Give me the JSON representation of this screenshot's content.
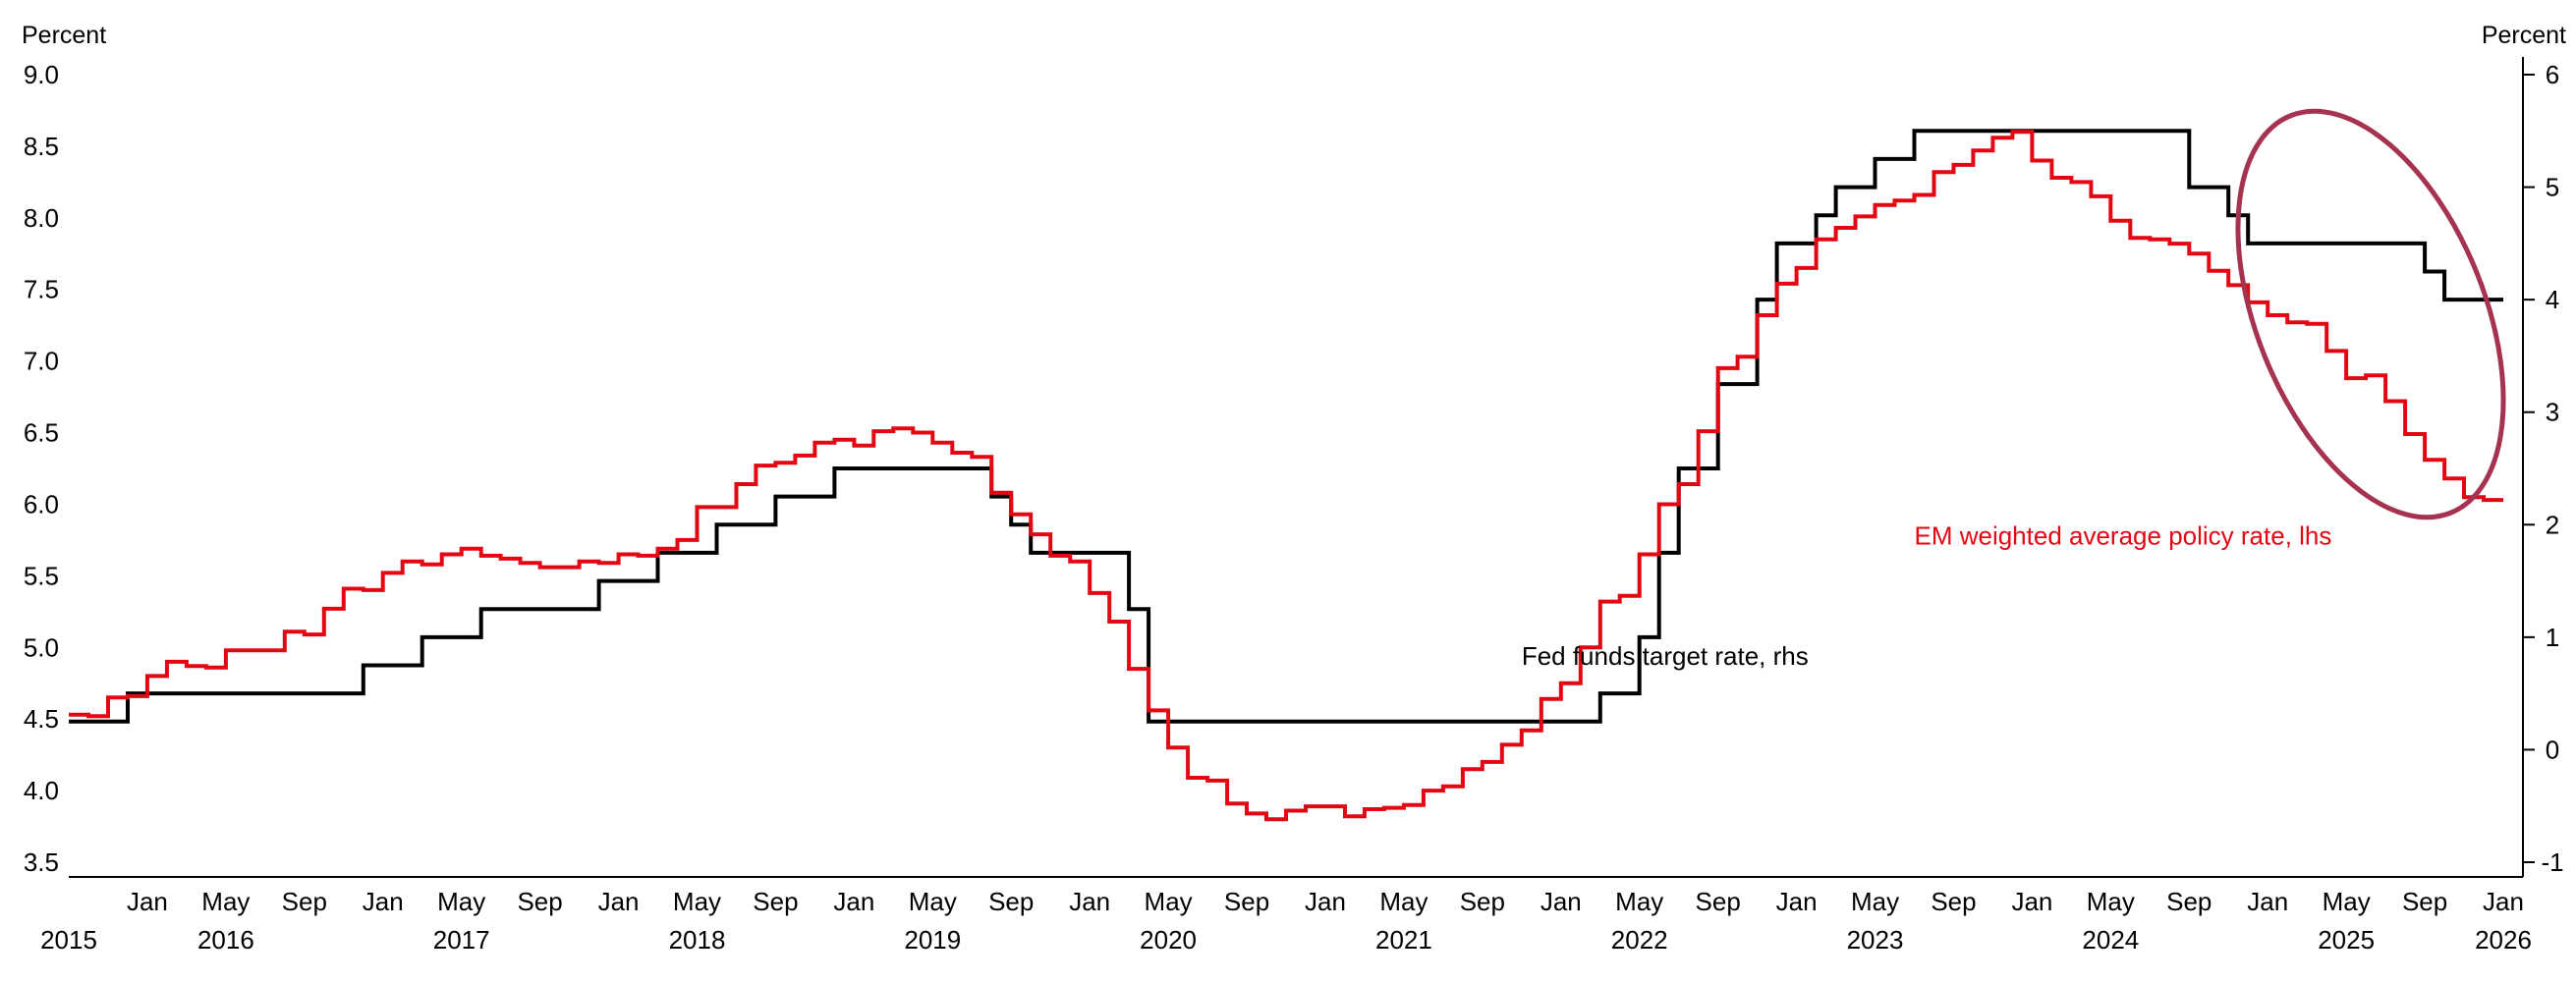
{
  "chart_data": {
    "type": "line",
    "left_axis_title": "Percent",
    "right_axis_title": "Percent",
    "ylim_left": [
      3.5,
      9.0
    ],
    "ylim_right": [
      -1,
      6
    ],
    "yticks_left": [
      "9.0",
      "8.5",
      "8.0",
      "7.5",
      "7.0",
      "6.5",
      "6.0",
      "5.5",
      "5.0",
      "4.5",
      "4.0",
      "3.5"
    ],
    "yticks_right": [
      "6",
      "5",
      "4",
      "3",
      "2",
      "1",
      "0",
      "-1"
    ],
    "x_range": [
      "2015-09",
      "2026-02"
    ],
    "x_month_ticks": [
      {
        "label": "Jan",
        "date": "2016-01"
      },
      {
        "label": "May",
        "date": "2016-05"
      },
      {
        "label": "Sep",
        "date": "2016-09"
      },
      {
        "label": "Jan",
        "date": "2017-01"
      },
      {
        "label": "May",
        "date": "2017-05"
      },
      {
        "label": "Sep",
        "date": "2017-09"
      },
      {
        "label": "Jan",
        "date": "2018-01"
      },
      {
        "label": "May",
        "date": "2018-05"
      },
      {
        "label": "Sep",
        "date": "2018-09"
      },
      {
        "label": "Jan",
        "date": "2019-01"
      },
      {
        "label": "May",
        "date": "2019-05"
      },
      {
        "label": "Sep",
        "date": "2019-09"
      },
      {
        "label": "Jan",
        "date": "2020-01"
      },
      {
        "label": "May",
        "date": "2020-05"
      },
      {
        "label": "Sep",
        "date": "2020-09"
      },
      {
        "label": "Jan",
        "date": "2021-01"
      },
      {
        "label": "May",
        "date": "2021-05"
      },
      {
        "label": "Sep",
        "date": "2021-09"
      },
      {
        "label": "Jan",
        "date": "2022-01"
      },
      {
        "label": "May",
        "date": "2022-05"
      },
      {
        "label": "Sep",
        "date": "2022-09"
      },
      {
        "label": "Jan",
        "date": "2023-01"
      },
      {
        "label": "May",
        "date": "2023-05"
      },
      {
        "label": "Sep",
        "date": "2023-09"
      },
      {
        "label": "Jan",
        "date": "2024-01"
      },
      {
        "label": "May",
        "date": "2024-05"
      },
      {
        "label": "Sep",
        "date": "2024-09"
      },
      {
        "label": "Jan",
        "date": "2025-01"
      },
      {
        "label": "May",
        "date": "2025-05"
      },
      {
        "label": "Sep",
        "date": "2025-09"
      },
      {
        "label": "Jan",
        "date": "2026-01"
      }
    ],
    "x_year_labels": [
      {
        "label": "2015",
        "date": "2015-09"
      },
      {
        "label": "2016",
        "date": "2016-05"
      },
      {
        "label": "2017",
        "date": "2017-05"
      },
      {
        "label": "2018",
        "date": "2018-05"
      },
      {
        "label": "2019",
        "date": "2019-05"
      },
      {
        "label": "2020",
        "date": "2020-05"
      },
      {
        "label": "2021",
        "date": "2021-05"
      },
      {
        "label": "2022",
        "date": "2022-05"
      },
      {
        "label": "2023",
        "date": "2023-05"
      },
      {
        "label": "2024",
        "date": "2024-05"
      },
      {
        "label": "2025",
        "date": "2025-05"
      },
      {
        "label": "2026",
        "date": "2026-01"
      }
    ],
    "colors": {
      "em": "#e30613",
      "fed": "#000000",
      "ellipse": "#a5334f"
    },
    "grid": false,
    "series": [
      {
        "name": "EM weighted average policy rate, lhs",
        "axis": "left",
        "color": "#e30613",
        "points": [
          [
            "2015-09",
            4.53
          ],
          [
            "2015-10",
            4.52
          ],
          [
            "2015-11",
            4.65
          ],
          [
            "2015-12",
            4.66
          ],
          [
            "2016-01",
            4.8
          ],
          [
            "2016-02",
            4.9
          ],
          [
            "2016-03",
            4.87
          ],
          [
            "2016-04",
            4.86
          ],
          [
            "2016-05",
            4.98
          ],
          [
            "2016-06",
            4.98
          ],
          [
            "2016-07",
            4.98
          ],
          [
            "2016-08",
            5.11
          ],
          [
            "2016-09",
            5.09
          ],
          [
            "2016-10",
            5.27
          ],
          [
            "2016-11",
            5.41
          ],
          [
            "2016-12",
            5.4
          ],
          [
            "2017-01",
            5.52
          ],
          [
            "2017-02",
            5.6
          ],
          [
            "2017-03",
            5.58
          ],
          [
            "2017-04",
            5.65
          ],
          [
            "2017-05",
            5.69
          ],
          [
            "2017-06",
            5.64
          ],
          [
            "2017-07",
            5.62
          ],
          [
            "2017-08",
            5.59
          ],
          [
            "2017-09",
            5.56
          ],
          [
            "2017-10",
            5.56
          ],
          [
            "2017-11",
            5.6
          ],
          [
            "2017-12",
            5.59
          ],
          [
            "2018-01",
            5.65
          ],
          [
            "2018-02",
            5.64
          ],
          [
            "2018-03",
            5.69
          ],
          [
            "2018-04",
            5.75
          ],
          [
            "2018-05",
            5.98
          ],
          [
            "2018-06",
            5.98
          ],
          [
            "2018-07",
            6.14
          ],
          [
            "2018-08",
            6.27
          ],
          [
            "2018-09",
            6.29
          ],
          [
            "2018-10",
            6.34
          ],
          [
            "2018-11",
            6.43
          ],
          [
            "2018-12",
            6.45
          ],
          [
            "2019-01",
            6.41
          ],
          [
            "2019-02",
            6.51
          ],
          [
            "2019-03",
            6.53
          ],
          [
            "2019-04",
            6.5
          ],
          [
            "2019-05",
            6.43
          ],
          [
            "2019-06",
            6.36
          ],
          [
            "2019-07",
            6.33
          ],
          [
            "2019-08",
            6.08
          ],
          [
            "2019-09",
            5.93
          ],
          [
            "2019-10",
            5.79
          ],
          [
            "2019-11",
            5.64
          ],
          [
            "2019-12",
            5.6
          ],
          [
            "2020-01",
            5.38
          ],
          [
            "2020-02",
            5.18
          ],
          [
            "2020-03",
            4.85
          ],
          [
            "2020-04",
            4.56
          ],
          [
            "2020-05",
            4.3
          ],
          [
            "2020-06",
            4.09
          ],
          [
            "2020-07",
            4.07
          ],
          [
            "2020-08",
            3.91
          ],
          [
            "2020-09",
            3.84
          ],
          [
            "2020-10",
            3.8
          ],
          [
            "2020-11",
            3.86
          ],
          [
            "2020-12",
            3.89
          ],
          [
            "2021-01",
            3.89
          ],
          [
            "2021-02",
            3.82
          ],
          [
            "2021-03",
            3.87
          ],
          [
            "2021-04",
            3.88
          ],
          [
            "2021-05",
            3.9
          ],
          [
            "2021-06",
            4.0
          ],
          [
            "2021-07",
            4.03
          ],
          [
            "2021-08",
            4.15
          ],
          [
            "2021-09",
            4.2
          ],
          [
            "2021-10",
            4.32
          ],
          [
            "2021-11",
            4.42
          ],
          [
            "2021-12",
            4.64
          ],
          [
            "2022-01",
            4.75
          ],
          [
            "2022-02",
            5.0
          ],
          [
            "2022-03",
            5.32
          ],
          [
            "2022-04",
            5.36
          ],
          [
            "2022-05",
            5.65
          ],
          [
            "2022-06",
            6.0
          ],
          [
            "2022-07",
            6.14
          ],
          [
            "2022-08",
            6.51
          ],
          [
            "2022-09",
            6.95
          ],
          [
            "2022-10",
            7.03
          ],
          [
            "2022-11",
            7.32
          ],
          [
            "2022-12",
            7.54
          ],
          [
            "2023-01",
            7.65
          ],
          [
            "2023-02",
            7.85
          ],
          [
            "2023-03",
            7.93
          ],
          [
            "2023-04",
            8.01
          ],
          [
            "2023-05",
            8.09
          ],
          [
            "2023-06",
            8.12
          ],
          [
            "2023-07",
            8.16
          ],
          [
            "2023-08",
            8.32
          ],
          [
            "2023-09",
            8.37
          ],
          [
            "2023-10",
            8.47
          ],
          [
            "2023-11",
            8.56
          ],
          [
            "2023-12",
            8.6
          ],
          [
            "2024-01",
            8.4
          ],
          [
            "2024-02",
            8.28
          ],
          [
            "2024-03",
            8.25
          ],
          [
            "2024-04",
            8.15
          ],
          [
            "2024-05",
            7.98
          ],
          [
            "2024-06",
            7.86
          ],
          [
            "2024-07",
            7.85
          ],
          [
            "2024-08",
            7.82
          ],
          [
            "2024-09",
            7.75
          ],
          [
            "2024-10",
            7.63
          ],
          [
            "2024-11",
            7.53
          ],
          [
            "2024-12",
            7.41
          ],
          [
            "2025-01",
            7.32
          ],
          [
            "2025-02",
            7.27
          ],
          [
            "2025-03",
            7.26
          ],
          [
            "2025-04",
            7.07
          ],
          [
            "2025-05",
            6.88
          ],
          [
            "2025-06",
            6.9
          ],
          [
            "2025-07",
            6.72
          ],
          [
            "2025-08",
            6.49
          ],
          [
            "2025-09",
            6.31
          ],
          [
            "2025-10",
            6.18
          ],
          [
            "2025-11",
            6.05
          ],
          [
            "2025-12",
            6.03
          ],
          [
            "2026-01",
            6.03
          ]
        ]
      },
      {
        "name": "Fed funds target rate, rhs",
        "axis": "right",
        "color": "#000000",
        "points": [
          [
            "2015-09",
            0.25
          ],
          [
            "2015-12",
            0.5
          ],
          [
            "2016-12",
            0.75
          ],
          [
            "2017-03",
            1.0
          ],
          [
            "2017-06",
            1.25
          ],
          [
            "2017-12",
            1.5
          ],
          [
            "2018-03",
            1.75
          ],
          [
            "2018-06",
            2.0
          ],
          [
            "2018-09",
            2.25
          ],
          [
            "2018-12",
            2.5
          ],
          [
            "2019-08",
            2.25
          ],
          [
            "2019-09",
            2.0
          ],
          [
            "2019-10",
            1.75
          ],
          [
            "2020-03",
            1.25
          ],
          [
            "2020-04",
            0.25
          ],
          [
            "2022-03",
            0.5
          ],
          [
            "2022-05",
            1.0
          ],
          [
            "2022-06",
            1.75
          ],
          [
            "2022-07",
            2.5
          ],
          [
            "2022-09",
            3.25
          ],
          [
            "2022-11",
            4.0
          ],
          [
            "2022-12",
            4.5
          ],
          [
            "2023-02",
            4.75
          ],
          [
            "2023-03",
            5.0
          ],
          [
            "2023-05",
            5.25
          ],
          [
            "2023-07",
            5.5
          ],
          [
            "2024-09",
            5.0
          ],
          [
            "2024-11",
            4.75
          ],
          [
            "2024-12",
            4.5
          ],
          [
            "2025-09",
            4.25
          ],
          [
            "2025-10",
            4.0
          ],
          [
            "2026-01",
            4.0
          ]
        ]
      }
    ],
    "annotations": [
      {
        "text": "EM weighted average policy rate, lhs",
        "series": "em",
        "color": "#e30613",
        "date": "2023-07",
        "value_lhs": 5.72
      },
      {
        "text": "Fed funds target rate, rhs",
        "series": "fed",
        "color": "#000000",
        "date": "2021-11",
        "value_lhs": 4.88
      }
    ]
  }
}
